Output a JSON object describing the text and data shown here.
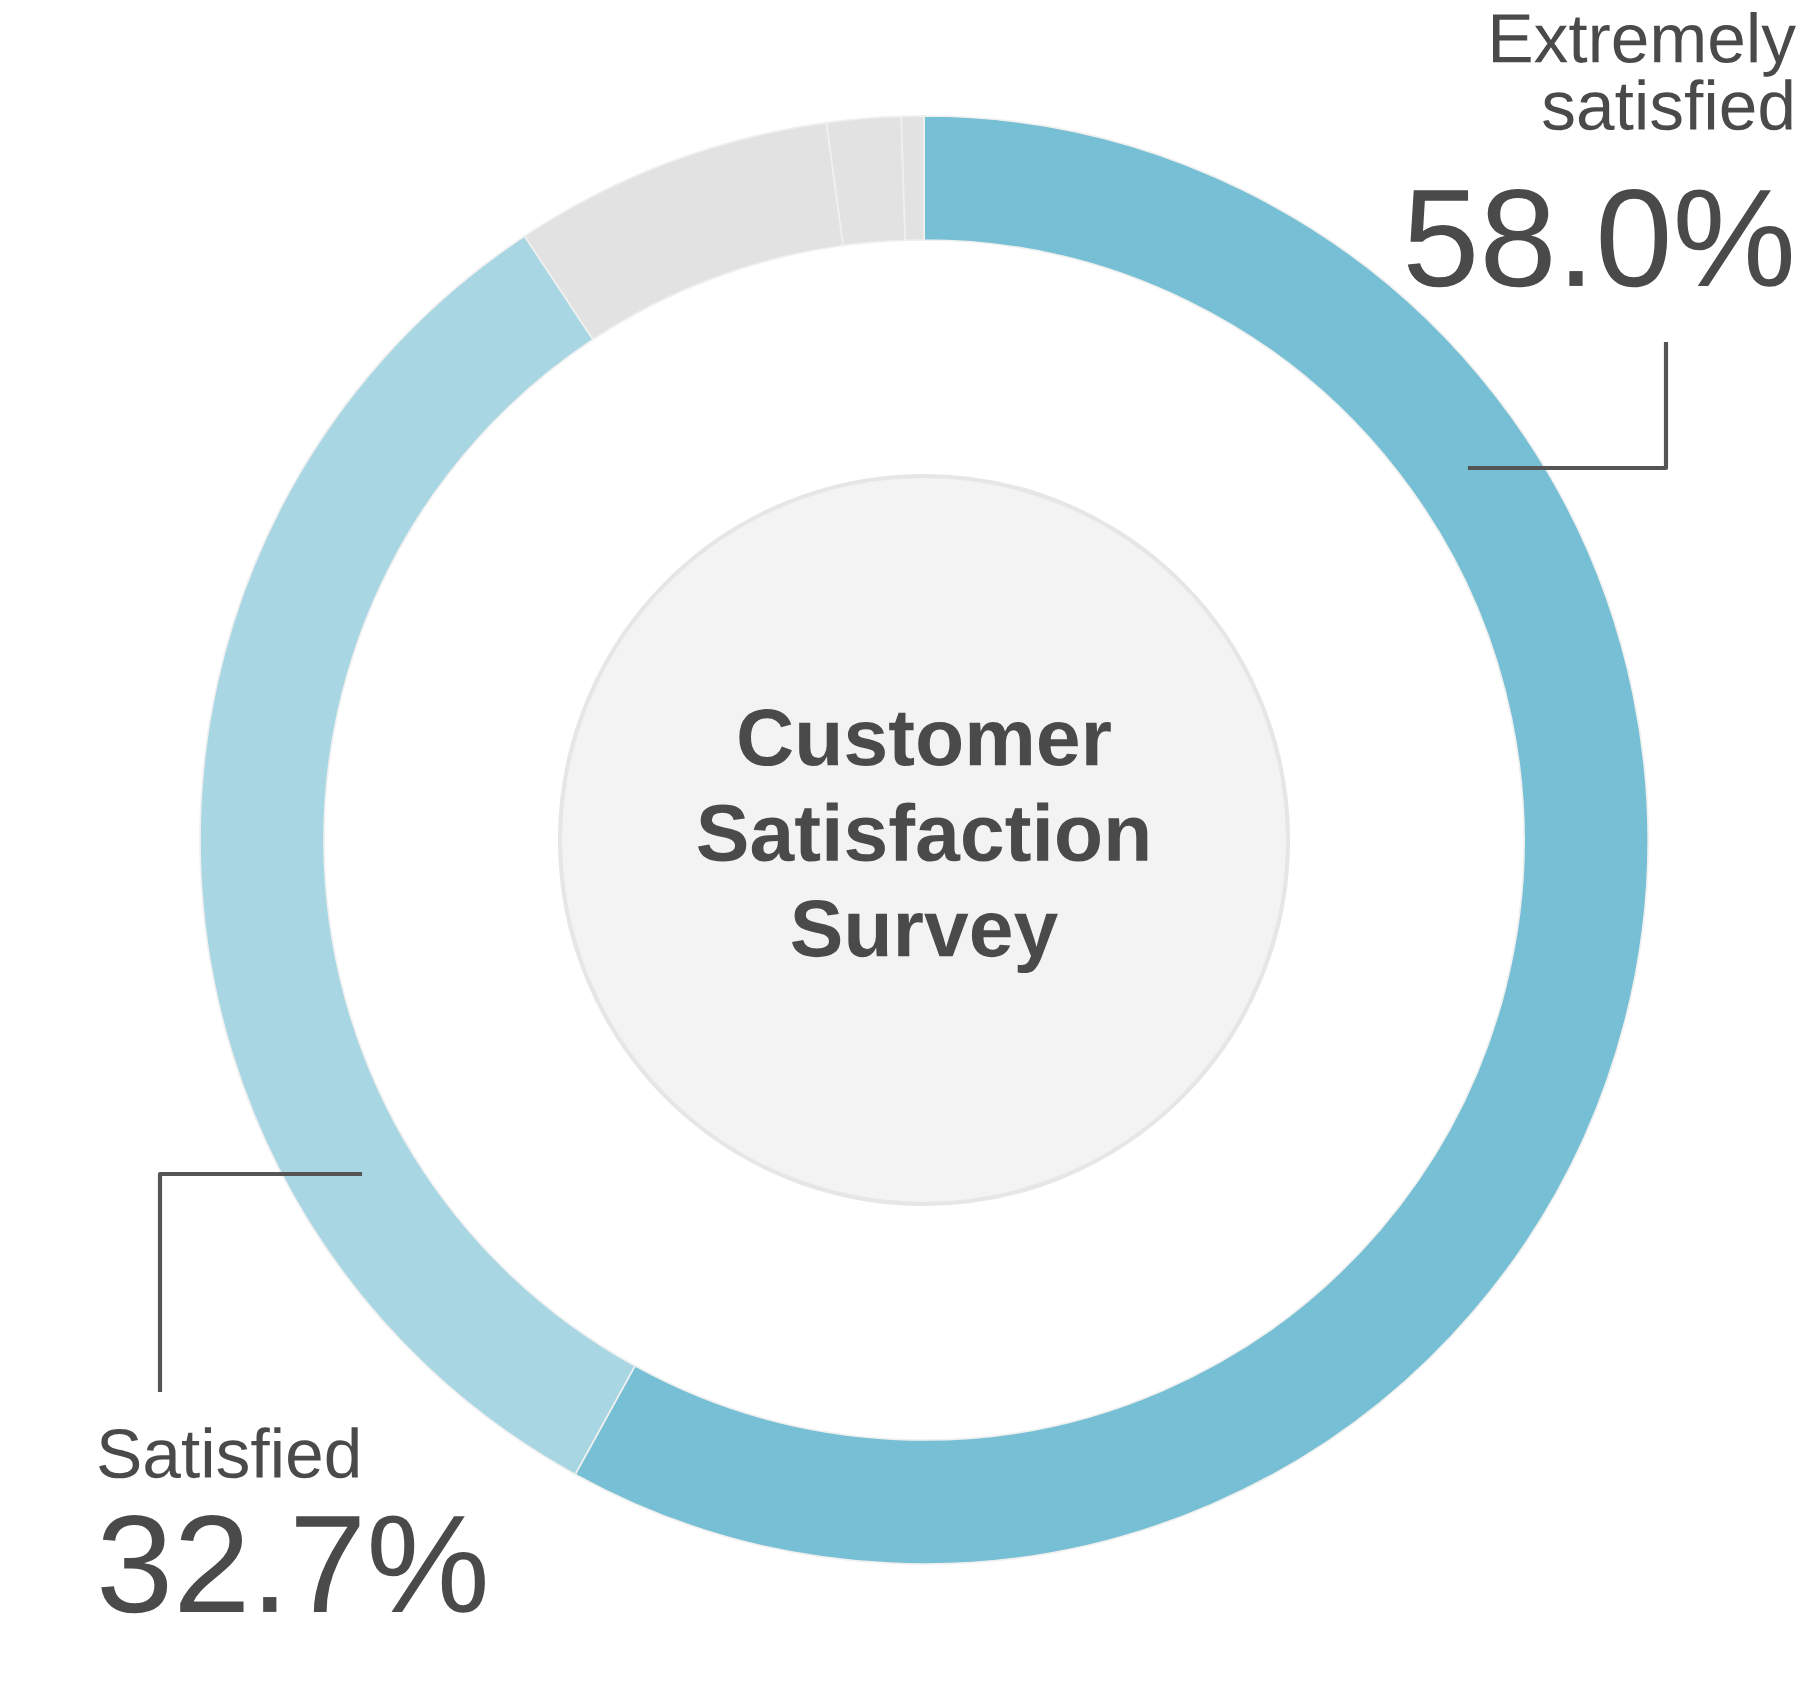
{
  "chart_data": {
    "type": "donut",
    "title": "Customer\nSatisfaction\nSurvey",
    "categories": [
      "Extremely\nsatisfied",
      "Satisfied",
      null,
      null,
      null
    ],
    "values": [
      58.0,
      32.7,
      7.15,
      1.65,
      0.5
    ],
    "colors": [
      "#76bfd4",
      "#a8d7e3",
      "#e2e2e2",
      "#e2e2e2",
      "#e2e2e2"
    ],
    "value_labels": [
      "58.0%",
      "32.7%",
      null,
      null,
      null
    ]
  }
}
